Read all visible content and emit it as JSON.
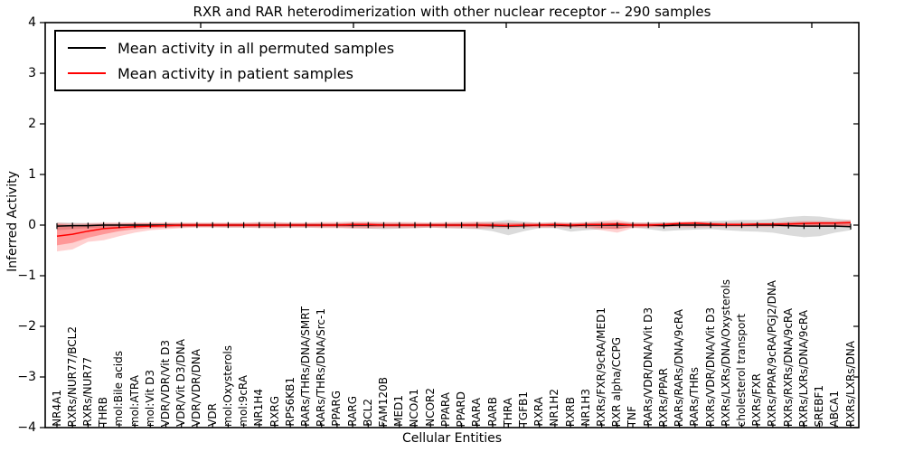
{
  "chart_data": {
    "type": "line",
    "title": "RXR and RAR heterodimerization with other nuclear receptor -- 290 samples",
    "xlabel": "Cellular Entities",
    "ylabel": "Inferred Activity",
    "ylim": [
      -4,
      4
    ],
    "yticks": [
      4,
      3,
      2,
      1,
      0,
      -1,
      -2,
      -3,
      -4
    ],
    "ytick_labels": [
      "4",
      "3",
      "2",
      "1",
      "0",
      "−1",
      "−2",
      "−3",
      "−4"
    ],
    "grid": false,
    "legend_position": "upper left",
    "categories": [
      "NR4A1",
      "RXRs/NUR77/BCL2",
      "RXRs/NUR77",
      "THRB",
      "mol:Bile acids",
      "mol:ATRA",
      "mol:Vit D3",
      "VDR/VDR/Vit D3",
      "VDR/Vit D3/DNA",
      "VDR/VDR/DNA",
      "VDR",
      "mol:Oxysterols",
      "mol:9cRA",
      "NR1H4",
      "RXRG",
      "RPS6KB1",
      "RARs/THRs/DNA/SMRT",
      "RARs/THRs/DNA/Src-1",
      "PPARG",
      "RARG",
      "BCL2",
      "FAM120B",
      "MED1",
      "NCOA1",
      "NCOR2",
      "PPARA",
      "PPARD",
      "RARA",
      "RARB",
      "THRA",
      "TGFB1",
      "RXRA",
      "NR1H2",
      "RXRB",
      "NR1H3",
      "RXRs/FXR/9cRA/MED1",
      "RXR alpha/CCPG",
      "TNF",
      "RARs/VDR/DNA/Vit D3",
      "RXRs/PPAR",
      "RARs/RARs/DNA/9cRA",
      "RARs/THRs",
      "RXRs/VDR/DNA/Vit D3",
      "RXRs/LXRs/DNA/Oxysterols",
      "cholesterol transport",
      "RXRs/FXR",
      "RXRs/PPAR/9cRA/PGJ2/DNA",
      "RXRs/RXRs/DNA/9cRA",
      "RXRs/LXRs/DNA/9cRA",
      "SREBF1",
      "ABCA1",
      "RXRs/LXRs/DNA"
    ],
    "series": [
      {
        "name": "Mean activity in all permuted samples",
        "color": "#000000",
        "values": [
          -0.02,
          -0.01,
          -0.01,
          0,
          0,
          0,
          0,
          0,
          0,
          0,
          0,
          0,
          0,
          0,
          0,
          0,
          0,
          0,
          0,
          0,
          0,
          0,
          0,
          0,
          0,
          0,
          0,
          0,
          -0.01,
          -0.02,
          -0.01,
          0,
          0,
          -0.01,
          0,
          0,
          0,
          0,
          0,
          -0.01,
          0,
          0,
          0,
          0,
          0,
          0,
          0,
          -0.01,
          -0.02,
          -0.02,
          -0.02,
          -0.03
        ]
      },
      {
        "name": "Mean activity in patient samples",
        "color": "#ff0000",
        "values": [
          -0.22,
          -0.18,
          -0.12,
          -0.07,
          -0.05,
          -0.03,
          -0.02,
          -0.01,
          0,
          0,
          0,
          0,
          0,
          0,
          0,
          0,
          0,
          0,
          0,
          0.01,
          0.01,
          0,
          0,
          0,
          0,
          0,
          0,
          0,
          0,
          -0.01,
          0,
          0,
          0.01,
          0,
          0.01,
          0.01,
          0.02,
          0,
          0,
          0.01,
          0.03,
          0.04,
          0.02,
          0.01,
          0.01,
          0.02,
          0.02,
          0.02,
          0.03,
          0.04,
          0.04,
          0.05
        ]
      }
    ],
    "bands": [
      {
        "name": "permuted-samples-range",
        "color": "rgba(125,125,125,0.28)",
        "top": [
          0.05,
          0.05,
          0.04,
          0.04,
          0.04,
          0.04,
          0.04,
          0.04,
          0.04,
          0.04,
          0.04,
          0.04,
          0.04,
          0.05,
          0.05,
          0.04,
          0.04,
          0.04,
          0.04,
          0.05,
          0.05,
          0.05,
          0.05,
          0.04,
          0.04,
          0.04,
          0.05,
          0.05,
          0.07,
          0.1,
          0.07,
          0.04,
          0.05,
          0.04,
          0.05,
          0.06,
          0.05,
          0.05,
          0.05,
          0.06,
          0.05,
          0.06,
          0.08,
          0.09,
          0.1,
          0.1,
          0.12,
          0.16,
          0.18,
          0.17,
          0.13,
          0.1
        ],
        "bottom": [
          -0.1,
          -0.08,
          -0.06,
          -0.05,
          -0.05,
          -0.04,
          -0.04,
          -0.04,
          -0.04,
          -0.04,
          -0.04,
          -0.05,
          -0.05,
          -0.05,
          -0.06,
          -0.05,
          -0.05,
          -0.05,
          -0.05,
          -0.06,
          -0.07,
          -0.08,
          -0.07,
          -0.06,
          -0.05,
          -0.06,
          -0.07,
          -0.08,
          -0.12,
          -0.2,
          -0.12,
          -0.06,
          -0.06,
          -0.13,
          -0.1,
          -0.08,
          -0.07,
          -0.05,
          -0.08,
          -0.12,
          -0.1,
          -0.09,
          -0.08,
          -0.1,
          -0.12,
          -0.13,
          -0.15,
          -0.2,
          -0.24,
          -0.22,
          -0.15,
          -0.1
        ]
      },
      {
        "name": "patient-samples-range-outer",
        "color": "rgba(255,0,0,0.18)",
        "top": [
          0.05,
          0.03,
          0.04,
          0.05,
          0.05,
          0.05,
          0.05,
          0.05,
          0.05,
          0.05,
          0.05,
          0.05,
          0.05,
          0.06,
          0.06,
          0.05,
          0.05,
          0.06,
          0.06,
          0.07,
          0.07,
          0.06,
          0.06,
          0.06,
          0.05,
          0.06,
          0.06,
          0.07,
          0.06,
          0.05,
          0.05,
          0.05,
          0.06,
          0.05,
          0.06,
          0.08,
          0.1,
          0.05,
          0.05,
          0.05,
          0.07,
          0.08,
          0.06,
          0.05,
          0.05,
          0.05,
          0.05,
          0.07,
          0.08,
          0.08,
          0.08,
          0.1
        ],
        "bottom": [
          -0.52,
          -0.48,
          -0.33,
          -0.3,
          -0.22,
          -0.15,
          -0.1,
          -0.08,
          -0.06,
          -0.05,
          -0.05,
          -0.05,
          -0.05,
          -0.06,
          -0.06,
          -0.05,
          -0.05,
          -0.06,
          -0.06,
          -0.07,
          -0.07,
          -0.06,
          -0.06,
          -0.06,
          -0.05,
          -0.06,
          -0.06,
          -0.07,
          -0.06,
          -0.06,
          -0.05,
          -0.05,
          -0.05,
          -0.05,
          -0.06,
          -0.1,
          -0.15,
          -0.06,
          -0.05,
          -0.04,
          -0.04,
          -0.05,
          -0.04,
          -0.04,
          -0.04,
          -0.04,
          -0.04,
          -0.03,
          -0.03,
          -0.03,
          -0.03,
          -0.04
        ]
      },
      {
        "name": "patient-samples-range-inner",
        "color": "rgba(255,0,0,0.28)",
        "top": [
          0.02,
          0.0,
          0.01,
          0.02,
          0.02,
          0.03,
          0.03,
          0.03,
          0.03,
          0.03,
          0.03,
          0.03,
          0.03,
          0.03,
          0.03,
          0.03,
          0.03,
          0.03,
          0.03,
          0.04,
          0.04,
          0.03,
          0.03,
          0.03,
          0.03,
          0.03,
          0.03,
          0.04,
          0.03,
          0.03,
          0.03,
          0.03,
          0.03,
          0.03,
          0.03,
          0.04,
          0.05,
          0.03,
          0.03,
          0.03,
          0.05,
          0.05,
          0.04,
          0.03,
          0.03,
          0.03,
          0.03,
          0.05,
          0.06,
          0.06,
          0.06,
          0.07
        ],
        "bottom": [
          -0.4,
          -0.35,
          -0.25,
          -0.18,
          -0.12,
          -0.08,
          -0.06,
          -0.05,
          -0.04,
          -0.03,
          -0.03,
          -0.03,
          -0.03,
          -0.03,
          -0.03,
          -0.03,
          -0.03,
          -0.03,
          -0.03,
          -0.04,
          -0.04,
          -0.03,
          -0.03,
          -0.03,
          -0.03,
          -0.03,
          -0.03,
          -0.04,
          -0.03,
          -0.03,
          -0.03,
          -0.03,
          -0.03,
          -0.03,
          -0.03,
          -0.06,
          -0.08,
          -0.03,
          -0.03,
          -0.02,
          -0.02,
          -0.02,
          -0.02,
          -0.02,
          -0.02,
          -0.02,
          -0.02,
          -0.01,
          -0.01,
          -0.01,
          -0.01,
          -0.02
        ]
      }
    ],
    "top_axis_tick_x": [
      222,
      391,
      560,
      729,
      898
    ],
    "axis_color": "#000000"
  }
}
